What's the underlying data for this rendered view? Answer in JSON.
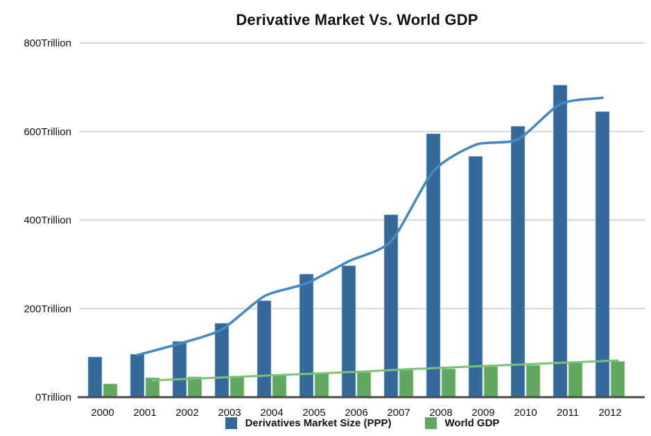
{
  "title": "Derivative Market Vs. World GDP",
  "colors": {
    "derivatives_bar": "#34699A",
    "world_gdp_bar": "#61A75F",
    "derivatives_line": "#4589C2",
    "world_gdp_line": "#79C377",
    "gridline": "#C8C8C8",
    "axis_line": "#4A4A4A",
    "text": "#111111"
  },
  "legend": {
    "items": [
      {
        "label": "Derivatives Market Size (PPP)",
        "color": "#34699A"
      },
      {
        "label": "World GDP",
        "color": "#61A75F"
      }
    ]
  },
  "chart_data": {
    "type": "bar",
    "title": "Derivative Market Vs. World GDP",
    "categories": [
      "2000",
      "2001",
      "2002",
      "2003",
      "2004",
      "2005",
      "2006",
      "2007",
      "2008",
      "2009",
      "2010",
      "2011",
      "2012"
    ],
    "unit": "Trillion",
    "ylim": [
      0,
      800
    ],
    "grid": true,
    "legend_position": "bottom",
    "y_ticks": [
      {
        "value": 0,
        "label": "0Trillion"
      },
      {
        "value": 200,
        "label": "200Trillion"
      },
      {
        "value": 400,
        "label": "400Trillion"
      },
      {
        "value": 600,
        "label": "600Trillion"
      },
      {
        "value": 800,
        "label": "800Trillion"
      }
    ],
    "series": [
      {
        "name": "Derivatives Market Size (PPP)",
        "kind": "bar",
        "color": "#34699A",
        "edge_color": "#A9C8DF",
        "values": [
          91,
          97,
          126,
          167,
          218,
          278,
          297,
          412,
          595,
          544,
          612,
          705,
          645
        ]
      },
      {
        "name": "World GDP",
        "kind": "bar",
        "color": "#61A75F",
        "edge_color": "#BCDCB6",
        "values": [
          30,
          44,
          46,
          47,
          50,
          55,
          56,
          61,
          64,
          69,
          72,
          78,
          81
        ]
      },
      {
        "name": "Derivatives Market Size trend",
        "kind": "line",
        "color": "#4589C2",
        "start_category": "2001",
        "start_index": 1,
        "values": [
          95,
          121,
          153,
          228,
          257,
          307,
          352,
          510,
          570,
          582,
          662,
          676
        ]
      },
      {
        "name": "World GDP trend",
        "kind": "line",
        "color": "#79C377",
        "start_category": "2001",
        "start_index": 1,
        "values": [
          38,
          42,
          46,
          50,
          54,
          58,
          63,
          67,
          71,
          75,
          79,
          83
        ]
      }
    ]
  }
}
